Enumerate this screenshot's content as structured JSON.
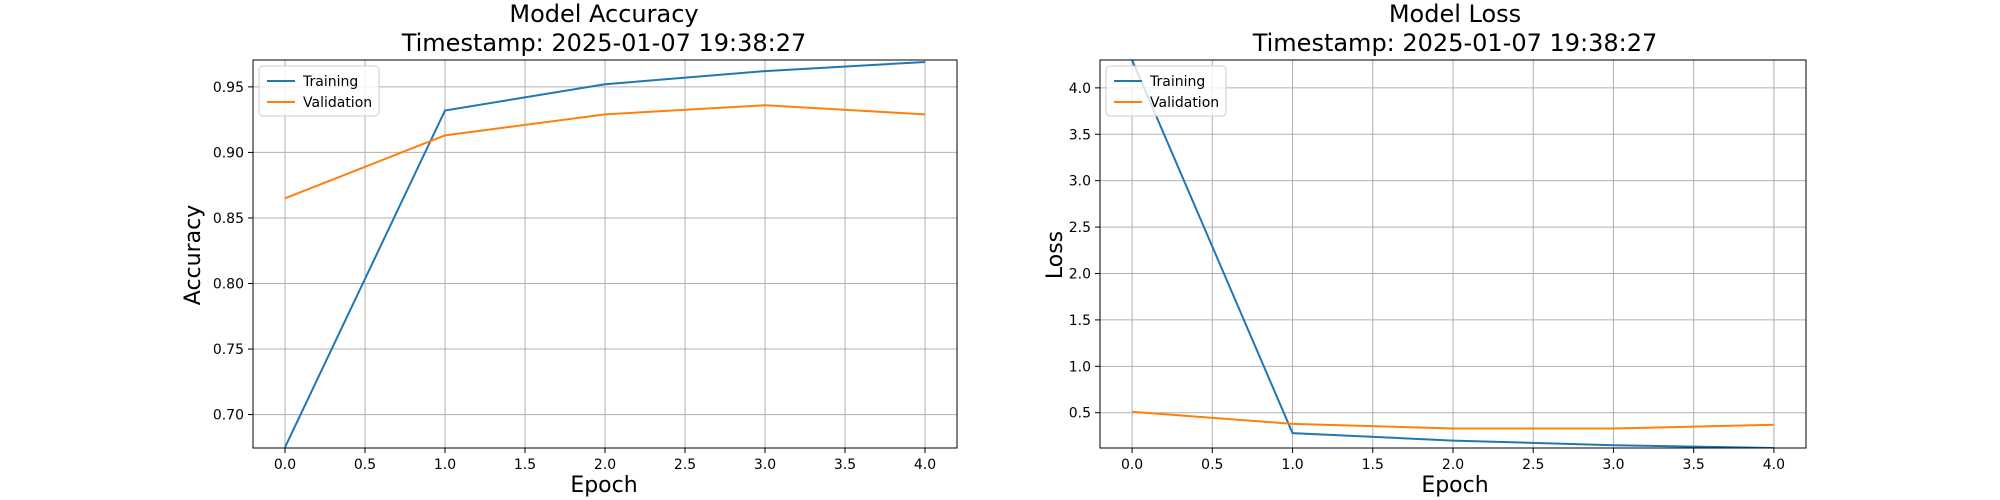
{
  "chart_data": [
    {
      "type": "line",
      "title_line1": "Model Accuracy",
      "title_line2": "Timestamp: 2025-01-07 19:38:27",
      "xlabel": "Epoch",
      "ylabel": "Accuracy",
      "xlim": [
        -0.2,
        4.2
      ],
      "ylim": [
        0.6745,
        0.9705
      ],
      "xticks": [
        "0.0",
        "0.5",
        "1.0",
        "1.5",
        "2.0",
        "2.5",
        "3.0",
        "3.5",
        "4.0"
      ],
      "yticks": [
        "0.70",
        "0.75",
        "0.80",
        "0.85",
        "0.90",
        "0.95"
      ],
      "grid": true,
      "legend_position": "upper-left",
      "x": [
        0,
        1,
        2,
        3,
        4
      ],
      "series": [
        {
          "name": "Training",
          "color": "#1f77b4",
          "values": [
            0.675,
            0.932,
            0.952,
            0.962,
            0.969
          ]
        },
        {
          "name": "Validation",
          "color": "#ff7f0e",
          "values": [
            0.865,
            0.913,
            0.929,
            0.936,
            0.929
          ]
        }
      ]
    },
    {
      "type": "line",
      "title_line1": "Model Loss",
      "title_line2": "Timestamp: 2025-01-07 19:38:27",
      "xlabel": "Epoch",
      "ylabel": "Loss",
      "xlim": [
        -0.2,
        4.2
      ],
      "ylim": [
        0.12,
        4.3
      ],
      "xticks": [
        "0.0",
        "0.5",
        "1.0",
        "1.5",
        "2.0",
        "2.5",
        "3.0",
        "3.5",
        "4.0"
      ],
      "yticks": [
        "0.5",
        "1.0",
        "1.5",
        "2.0",
        "2.5",
        "3.0",
        "3.5",
        "4.0"
      ],
      "grid": true,
      "legend_position": "upper-left",
      "x": [
        0,
        1,
        2,
        3,
        4
      ],
      "series": [
        {
          "name": "Training",
          "color": "#1f77b4",
          "values": [
            4.3,
            0.28,
            0.2,
            0.15,
            0.12
          ]
        },
        {
          "name": "Validation",
          "color": "#ff7f0e",
          "values": [
            0.51,
            0.38,
            0.33,
            0.33,
            0.37
          ]
        }
      ]
    }
  ]
}
